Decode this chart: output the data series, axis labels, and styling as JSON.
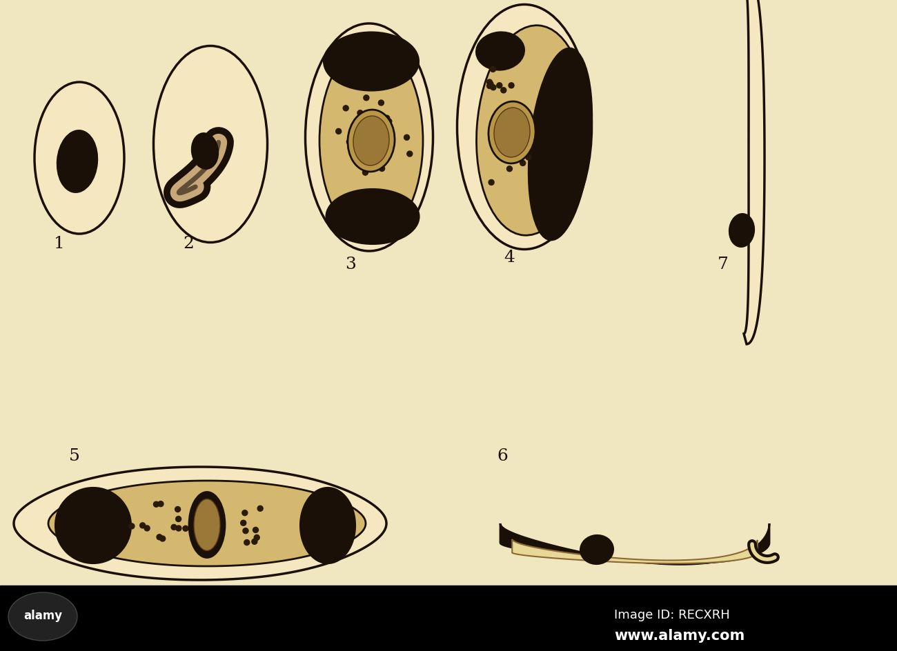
{
  "background_color": "#f0e6c0",
  "cell_fill": "#f5e8c0",
  "parasite_dark": "#1a1008",
  "parasite_light": "#c8a878",
  "dot_color": "#2a1a08",
  "label_color": "#1a1008",
  "label_fontsize": 18,
  "bottom_bar_color": "#000000",
  "bottom_text_color": "#ffffff",
  "bottom_text1": "Image ID: RECXRH",
  "bottom_text2": "www.alamy.com"
}
